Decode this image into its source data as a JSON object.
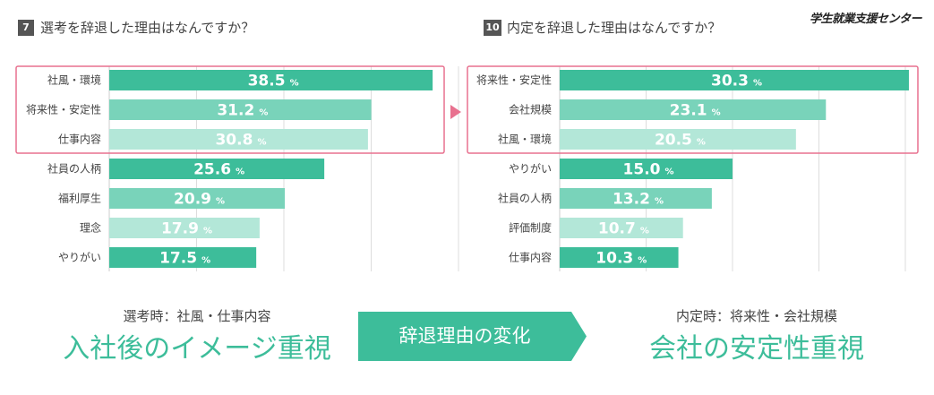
{
  "brand": "学生就業支援センター",
  "left_chart": {
    "number": "7",
    "title": "選考を辞退した理由はなんですか？",
    "unit": "%"
  },
  "right_chart": {
    "number": "10",
    "title": "内定を辞退した理由はなんですか？",
    "unit": "%"
  },
  "bottom": {
    "left_small": "選考時：社風・仕事内容",
    "left_big": "入社後のイメージ重視",
    "arrow_label": "辞退理由の変化",
    "right_small": "内定時：将来性・会社規模",
    "right_big": "会社の安定性重視"
  },
  "colors": {
    "dark": "#3dbd9a",
    "mid": "#79d3ba",
    "light": "#b3e7d8",
    "highlight": "#e8718f",
    "grid": "#dddddd"
  },
  "chart_data": [
    {
      "type": "bar",
      "orientation": "horizontal",
      "title": "選考を辞退した理由はなんですか？",
      "categories": [
        "社風・環境",
        "将来性・安定性",
        "仕事内容",
        "社員の人柄",
        "福利厚生",
        "理念",
        "やりがい"
      ],
      "values": [
        38.5,
        31.2,
        30.8,
        25.6,
        20.9,
        17.9,
        17.5
      ],
      "value_labels": [
        "38.5",
        "31.2",
        "30.8",
        "25.6",
        "20.9",
        "17.9",
        "17.5"
      ],
      "unit": "%",
      "highlighted_top": 3,
      "grid": true
    },
    {
      "type": "bar",
      "orientation": "horizontal",
      "title": "内定を辞退した理由はなんですか？",
      "categories": [
        "将来性・安定性",
        "会社規模",
        "社風・環境",
        "やりがい",
        "社員の人柄",
        "評価制度",
        "仕事内容"
      ],
      "values": [
        30.3,
        23.1,
        20.5,
        15.0,
        13.2,
        10.7,
        10.3
      ],
      "value_labels": [
        "30.3",
        "23.1",
        "20.5",
        "15.0",
        "13.2",
        "10.7",
        "10.3"
      ],
      "unit": "%",
      "highlighted_top": 3,
      "grid": true
    }
  ]
}
